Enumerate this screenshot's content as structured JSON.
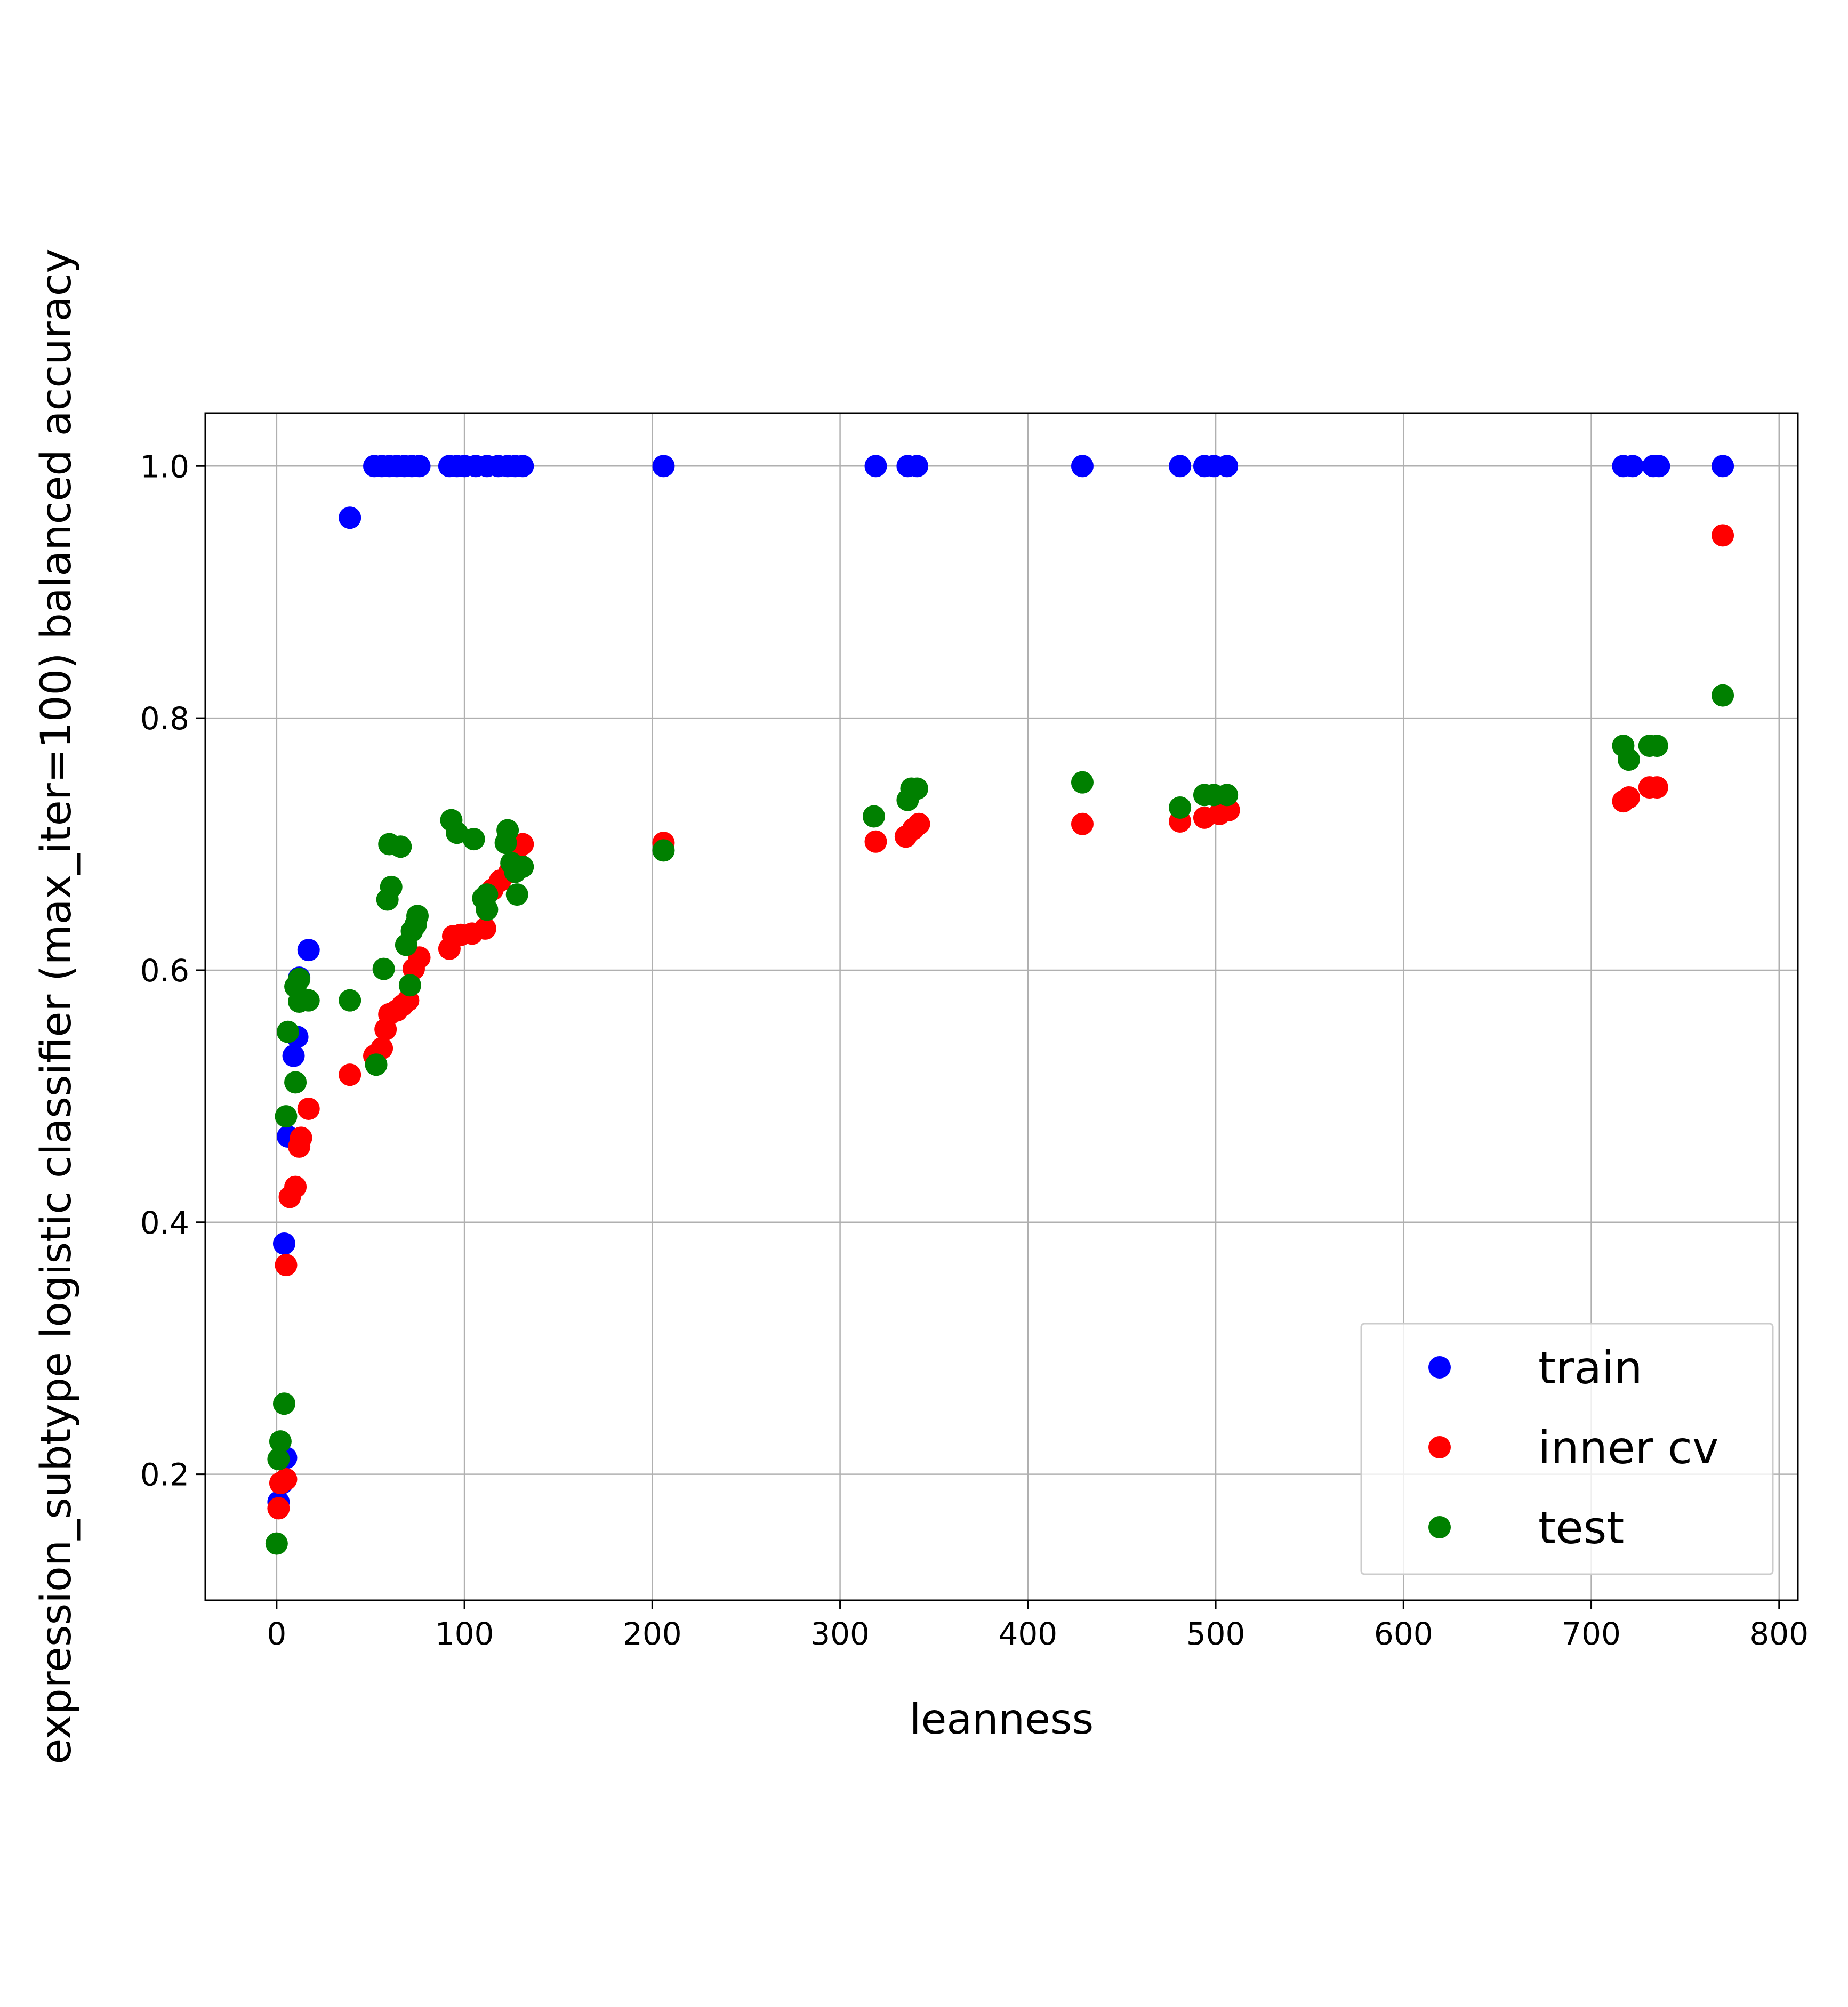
{
  "chart_data": {
    "type": "scatter",
    "xlabel": "leanness",
    "ylabel": "expression_subtype logistic classifier (max_iter=100) balanced accuracy",
    "xlim": [
      -38,
      810
    ],
    "ylim": [
      0.1,
      1.042
    ],
    "xticks": [
      0,
      100,
      200,
      300,
      400,
      500,
      600,
      700,
      800
    ],
    "yticks": [
      0.2,
      0.4,
      0.6,
      0.8,
      1.0
    ],
    "xtick_labels": [
      "0",
      "100",
      "200",
      "300",
      "400",
      "500",
      "600",
      "700",
      "800"
    ],
    "ytick_labels": [
      "0.2",
      "0.4",
      "0.6",
      "0.8",
      "1.0"
    ],
    "grid": true,
    "legend_position": "lower right",
    "series": [
      {
        "name": "train",
        "color": "#0000ff",
        "points": [
          [
            1,
            0.178
          ],
          [
            3,
            0.193
          ],
          [
            5,
            0.213
          ],
          [
            4,
            0.383
          ],
          [
            6,
            0.468
          ],
          [
            9,
            0.532
          ],
          [
            11,
            0.547
          ],
          [
            12,
            0.594
          ],
          [
            17,
            0.616
          ],
          [
            39,
            0.959
          ],
          [
            52,
            1.0
          ],
          [
            56,
            1.0
          ],
          [
            60,
            1.0
          ],
          [
            64,
            1.0
          ],
          [
            68,
            1.0
          ],
          [
            72,
            1.0
          ],
          [
            76,
            1.0
          ],
          [
            92,
            1.0
          ],
          [
            96,
            1.0
          ],
          [
            100,
            1.0
          ],
          [
            106,
            1.0
          ],
          [
            112,
            1.0
          ],
          [
            118,
            1.0
          ],
          [
            123,
            1.0
          ],
          [
            127,
            1.0
          ],
          [
            131,
            1.0
          ],
          [
            206,
            1.0
          ],
          [
            319,
            1.0
          ],
          [
            336,
            1.0
          ],
          [
            341,
            1.0
          ],
          [
            429,
            1.0
          ],
          [
            481,
            1.0
          ],
          [
            494,
            1.0
          ],
          [
            499,
            1.0
          ],
          [
            506,
            1.0
          ],
          [
            717,
            1.0
          ],
          [
            722,
            1.0
          ],
          [
            733,
            1.0
          ],
          [
            736,
            1.0
          ],
          [
            770,
            1.0
          ]
        ]
      },
      {
        "name": "inner cv",
        "color": "#ff0000",
        "points": [
          [
            1,
            0.173
          ],
          [
            2,
            0.193
          ],
          [
            5,
            0.196
          ],
          [
            5,
            0.366
          ],
          [
            7,
            0.42
          ],
          [
            10,
            0.428
          ],
          [
            12,
            0.46
          ],
          [
            13,
            0.467
          ],
          [
            17,
            0.49
          ],
          [
            39,
            0.517
          ],
          [
            52,
            0.532
          ],
          [
            56,
            0.538
          ],
          [
            58,
            0.553
          ],
          [
            60,
            0.565
          ],
          [
            64,
            0.568
          ],
          [
            67,
            0.572
          ],
          [
            70,
            0.576
          ],
          [
            73,
            0.601
          ],
          [
            76,
            0.61
          ],
          [
            92,
            0.617
          ],
          [
            94,
            0.627
          ],
          [
            98,
            0.628
          ],
          [
            104,
            0.629
          ],
          [
            111,
            0.633
          ],
          [
            115,
            0.664
          ],
          [
            119,
            0.671
          ],
          [
            124,
            0.678
          ],
          [
            128,
            0.686
          ],
          [
            131,
            0.7
          ],
          [
            206,
            0.701
          ],
          [
            319,
            0.702
          ],
          [
            335,
            0.706
          ],
          [
            339,
            0.712
          ],
          [
            342,
            0.716
          ],
          [
            429,
            0.716
          ],
          [
            481,
            0.718
          ],
          [
            494,
            0.721
          ],
          [
            502,
            0.724
          ],
          [
            507,
            0.727
          ],
          [
            717,
            0.734
          ],
          [
            720,
            0.737
          ],
          [
            731,
            0.745
          ],
          [
            735,
            0.745
          ],
          [
            770,
            0.945
          ]
        ]
      },
      {
        "name": "test",
        "color": "#008000",
        "points": [
          [
            0,
            0.145
          ],
          [
            1,
            0.212
          ],
          [
            2,
            0.226
          ],
          [
            4,
            0.256
          ],
          [
            5,
            0.484
          ],
          [
            6,
            0.551
          ],
          [
            10,
            0.511
          ],
          [
            10,
            0.587
          ],
          [
            12,
            0.593
          ],
          [
            12,
            0.575
          ],
          [
            17,
            0.576
          ],
          [
            39,
            0.576
          ],
          [
            53,
            0.525
          ],
          [
            57,
            0.601
          ],
          [
            59,
            0.656
          ],
          [
            61,
            0.666
          ],
          [
            60,
            0.7
          ],
          [
            66,
            0.698
          ],
          [
            69,
            0.62
          ],
          [
            71,
            0.588
          ],
          [
            72,
            0.631
          ],
          [
            74,
            0.636
          ],
          [
            75,
            0.643
          ],
          [
            93,
            0.719
          ],
          [
            96,
            0.709
          ],
          [
            105,
            0.704
          ],
          [
            110,
            0.657
          ],
          [
            112,
            0.66
          ],
          [
            112,
            0.648
          ],
          [
            122,
            0.701
          ],
          [
            123,
            0.711
          ],
          [
            125,
            0.685
          ],
          [
            127,
            0.678
          ],
          [
            128,
            0.66
          ],
          [
            131,
            0.682
          ],
          [
            206,
            0.695
          ],
          [
            318,
            0.722
          ],
          [
            336,
            0.735
          ],
          [
            338,
            0.744
          ],
          [
            341,
            0.744
          ],
          [
            429,
            0.749
          ],
          [
            481,
            0.729
          ],
          [
            494,
            0.739
          ],
          [
            499,
            0.739
          ],
          [
            506,
            0.739
          ],
          [
            717,
            0.778
          ],
          [
            720,
            0.767
          ],
          [
            731,
            0.778
          ],
          [
            735,
            0.778
          ],
          [
            770,
            0.818
          ]
        ]
      }
    ]
  }
}
